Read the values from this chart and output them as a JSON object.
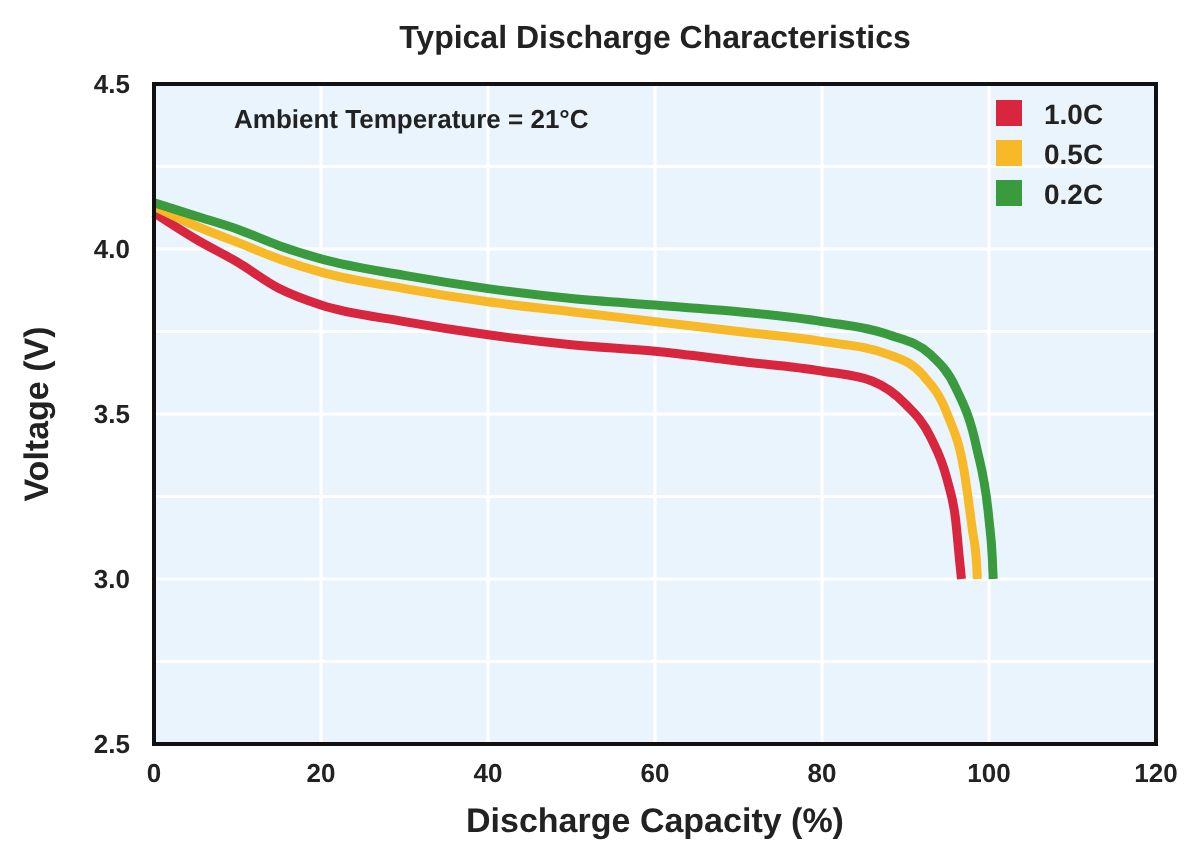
{
  "chart_data": {
    "type": "line",
    "title": "Typical Discharge Characteristics",
    "xlabel": "Discharge Capacity (%)",
    "ylabel": "Voltage (V)",
    "annotations": [
      "Ambient Temperature = 21°C"
    ],
    "xlim": [
      0,
      120
    ],
    "xticks": [
      0,
      20,
      40,
      60,
      80,
      100,
      120
    ],
    "ylim": [
      2.5,
      4.5
    ],
    "yticks": [
      2.5,
      {
        "value": 2.75,
        "label": null
      },
      {
        "value": 3,
        "label": "3.0"
      },
      {
        "value": 3.25,
        "label": null
      },
      3.5,
      {
        "value": 3.75,
        "label": null
      },
      {
        "value": 4,
        "label": "4.0"
      },
      {
        "value": 4.25,
        "label": null
      },
      4.5
    ],
    "grid": true,
    "legend": "top right",
    "line_style": "solid",
    "marker": "none",
    "series": [
      {
        "name": "1.0C",
        "color": "#d7263d",
        "x": [
          0,
          5,
          10,
          15,
          20,
          30,
          40,
          50,
          60,
          70,
          80,
          86,
          90,
          93,
          95,
          96,
          96.5,
          96.7
        ],
        "values": [
          4.11,
          4.03,
          3.96,
          3.88,
          3.83,
          3.78,
          3.74,
          3.71,
          3.69,
          3.66,
          3.63,
          3.6,
          3.53,
          3.43,
          3.3,
          3.18,
          3.05,
          3.0
        ]
      },
      {
        "name": "0.5C",
        "color": "#f7b928",
        "x": [
          0,
          5,
          10,
          15,
          20,
          30,
          40,
          50,
          60,
          70,
          80,
          88,
          92,
          95,
          97,
          98,
          98.5,
          98.6
        ],
        "values": [
          4.13,
          4.07,
          4.02,
          3.97,
          3.93,
          3.88,
          3.84,
          3.81,
          3.78,
          3.75,
          3.72,
          3.68,
          3.62,
          3.5,
          3.33,
          3.15,
          3.05,
          3.0
        ]
      },
      {
        "name": "0.2C",
        "color": "#3a9a3e",
        "x": [
          0,
          5,
          10,
          15,
          20,
          30,
          40,
          50,
          60,
          70,
          80,
          88,
          93,
          96,
          98.5,
          100,
          100.4,
          100.5
        ],
        "values": [
          4.14,
          4.1,
          4.06,
          4.01,
          3.97,
          3.92,
          3.88,
          3.85,
          3.83,
          3.81,
          3.78,
          3.74,
          3.68,
          3.58,
          3.4,
          3.18,
          3.06,
          3.0
        ]
      }
    ]
  }
}
